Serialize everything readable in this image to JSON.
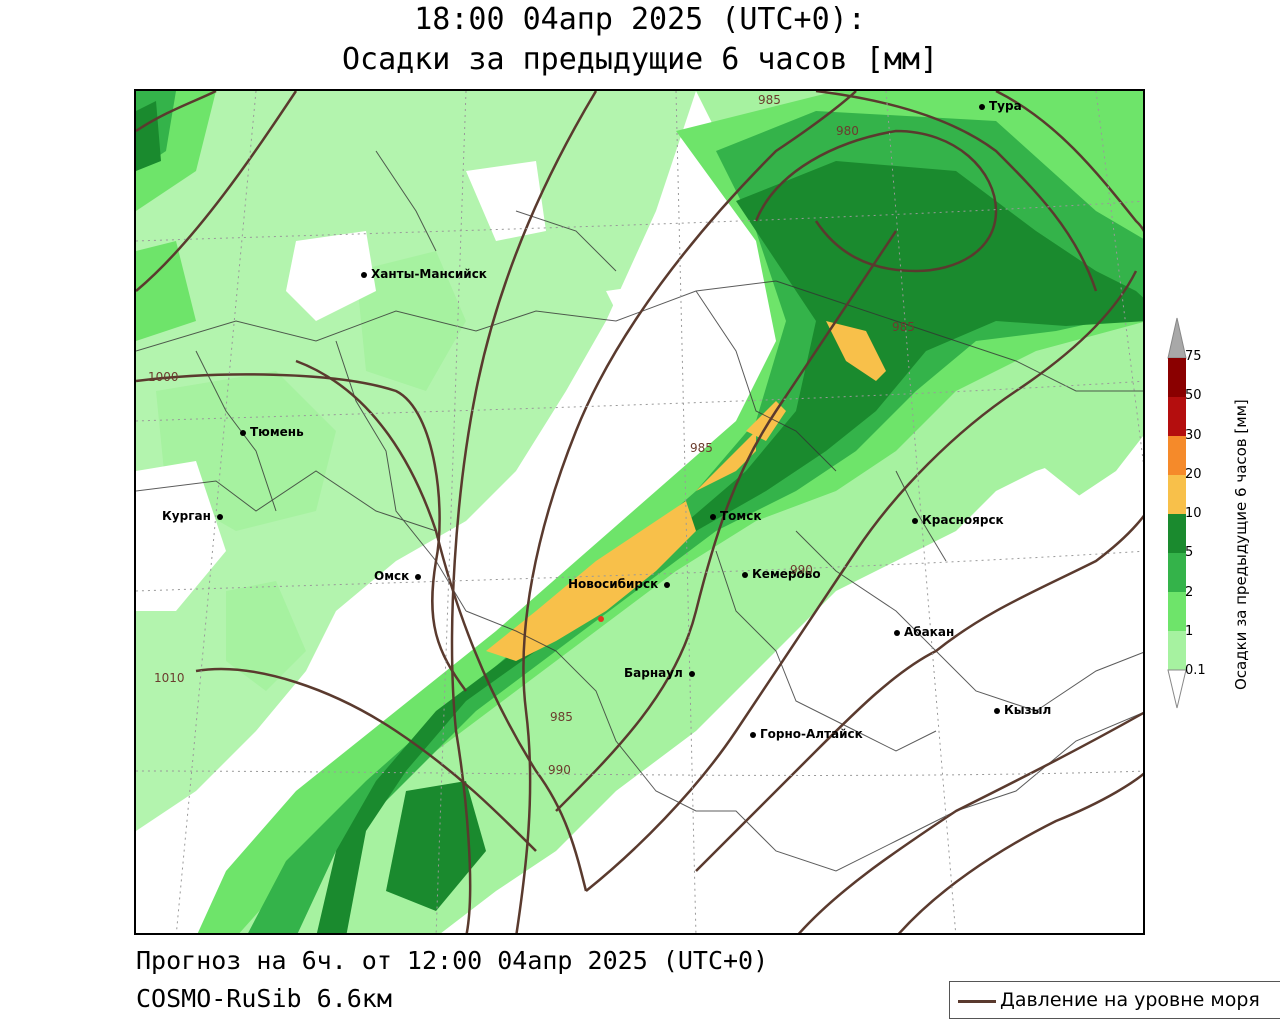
{
  "header": {
    "title_line1": "18:00 04апр 2025 (UTC+0):",
    "title_line2": "Осадки за предыдущие 6 часов [мм]"
  },
  "footer": {
    "forecast": "Прогноз на 6ч. от 12:00 04апр 2025 (UTC+0)",
    "model": "COSMO-RuSib 6.6км"
  },
  "legend": {
    "pressure_label": "Давление на уровне моря",
    "pressure_color": "#5a3a2e"
  },
  "colorbar": {
    "title": "Осадки за предыдущие 6 часов [мм]",
    "levels": [
      "0.1",
      "1",
      "2",
      "5",
      "10",
      "20",
      "30",
      "50",
      "75"
    ],
    "colors": [
      "#ffffff",
      "#a6f2a0",
      "#6ee46a",
      "#34b34a",
      "#1a8a2e",
      "#f8c04a",
      "#f58a2a",
      "#e5361e",
      "#b40e0e",
      "#8a0000",
      "#a8a8a8"
    ]
  },
  "cities": [
    {
      "name": "Тура"
    },
    {
      "name": "Ханты-Мансийск"
    },
    {
      "name": "Тюмень"
    },
    {
      "name": "Курган"
    },
    {
      "name": "Омск"
    },
    {
      "name": "Томск"
    },
    {
      "name": "Красноярск"
    },
    {
      "name": "Новосибирск"
    },
    {
      "name": "Кемерово"
    },
    {
      "name": "Абакан"
    },
    {
      "name": "Барнаул"
    },
    {
      "name": "Кызыл"
    },
    {
      "name": "Горно-Алтайск"
    }
  ],
  "isobars": [
    "985",
    "980",
    "985",
    "1000",
    "985",
    "990",
    "1010",
    "985",
    "990"
  ]
}
